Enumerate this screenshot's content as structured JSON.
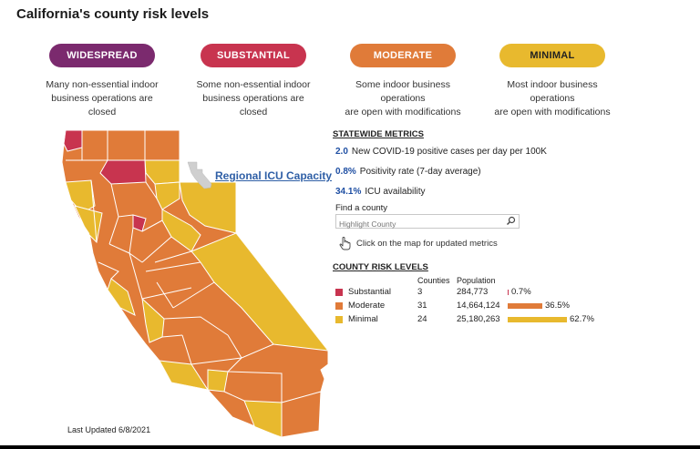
{
  "page": {
    "title": "California's county risk levels",
    "last_updated": "Last Updated 6/8/2021"
  },
  "tiers": [
    {
      "label": "WIDESPREAD",
      "desc_lines": [
        "Many non-essential indoor",
        "business operations are closed"
      ],
      "color": "#7b2a6e"
    },
    {
      "label": "SUBSTANTIAL",
      "desc_lines": [
        "Some non-essential indoor",
        "business operations are closed"
      ],
      "color": "#c8344f"
    },
    {
      "label": "MODERATE",
      "desc_lines": [
        "Some indoor business operations",
        "are open with modifications"
      ],
      "color": "#e07b39"
    },
    {
      "label": "MINIMAL",
      "desc_lines": [
        "Most indoor business operations",
        "are open with modifications"
      ],
      "color": "#e8b92e"
    }
  ],
  "map": {
    "icu_link": "Regional ICU Capacity"
  },
  "metrics": {
    "heading": "STATEWIDE METRICS",
    "items": [
      {
        "value": "2.0",
        "label": "New COVID-19 positive cases per day per 100K"
      },
      {
        "value": "0.8%",
        "label": "Positivity rate (7-day average)"
      },
      {
        "value": "34.1%",
        "label": "ICU availability"
      }
    ]
  },
  "search": {
    "label": "Find a county",
    "placeholder": "Highlight County"
  },
  "hint": "Click on the map for updated metrics",
  "risk_table": {
    "heading": "COUNTY RISK LEVELS",
    "col_counties": "Counties",
    "col_population": "Population",
    "rows": [
      {
        "level": "Substantial",
        "counties": "3",
        "population": "284,773",
        "percent": "0.7%",
        "share": 0.7,
        "color": "#c8344f"
      },
      {
        "level": "Moderate",
        "counties": "31",
        "population": "14,664,124",
        "percent": "36.5%",
        "share": 36.5,
        "color": "#e07b39"
      },
      {
        "level": "Minimal",
        "counties": "24",
        "population": "25,180,263",
        "percent": "62.7%",
        "share": 62.7,
        "color": "#e8b92e"
      }
    ]
  },
  "colors": {
    "link": "#2f5fa6",
    "metric_value": "#1f4fa3"
  }
}
